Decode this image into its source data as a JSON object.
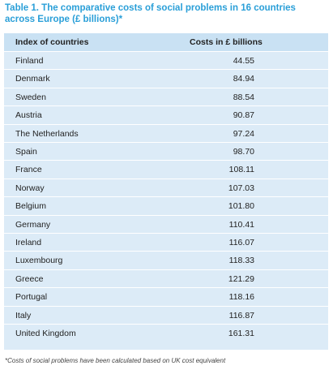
{
  "title": "Table 1. The comparative costs of social problems in 16 countries across Europe (£ billions)*",
  "table": {
    "headers": [
      "Index of countries",
      "Costs in £ billions"
    ],
    "rows": [
      {
        "country": "Finland",
        "cost": "44.55"
      },
      {
        "country": "Denmark",
        "cost": "84.94"
      },
      {
        "country": "Sweden",
        "cost": "88.54"
      },
      {
        "country": "Austria",
        "cost": "90.87"
      },
      {
        "country": "The Netherlands",
        "cost": "97.24"
      },
      {
        "country": "Spain",
        "cost": "98.70"
      },
      {
        "country": "France",
        "cost": "108.11"
      },
      {
        "country": "Norway",
        "cost": "107.03"
      },
      {
        "country": "Belgium",
        "cost": "101.80"
      },
      {
        "country": "Germany",
        "cost": "110.41"
      },
      {
        "country": "Ireland",
        "cost": "116.07"
      },
      {
        "country": "Luxembourg",
        "cost": "118.33"
      },
      {
        "country": "Greece",
        "cost": "121.29"
      },
      {
        "country": "Portugal",
        "cost": "118.16"
      },
      {
        "country": "Italy",
        "cost": "116.87"
      },
      {
        "country": "United Kingdom",
        "cost": "161.31"
      }
    ]
  },
  "footnote": "*Costs of social problems have been calculated based on UK cost equivalent"
}
